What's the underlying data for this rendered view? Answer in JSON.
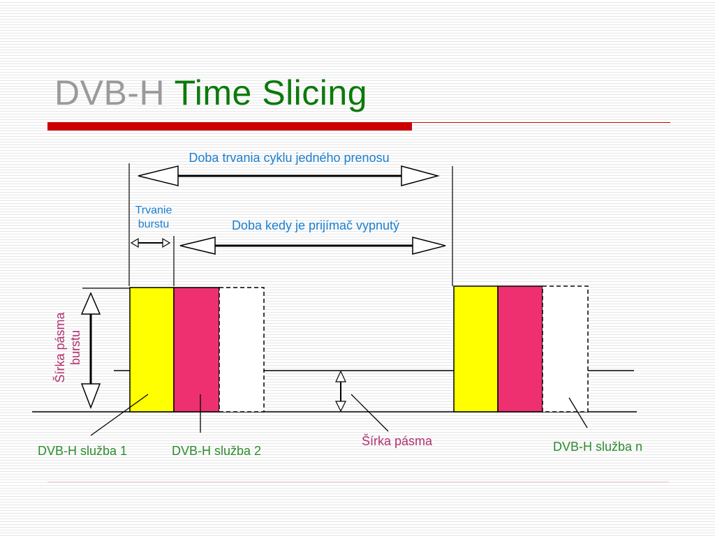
{
  "title": {
    "part1": "DVB-H",
    "part2": "Time Slicing"
  },
  "labels": {
    "cycle_duration": "Doba trvania cyklu jedného prenosu",
    "burst_duration_line1": "Trvanie",
    "burst_duration_line2": "burstu",
    "receiver_off": "Doba kedy je prijímač vypnutý",
    "burst_bandwidth_line1": "Šírka pásma",
    "burst_bandwidth_line2": "burstu",
    "bandwidth": "Šírka pásma",
    "service1": "DVB-H služba 1",
    "service2": "DVB-H služba 2",
    "servicen": "DVB-H služba n"
  },
  "colors": {
    "service1": "#ffff00",
    "service2": "#ee3070",
    "servicen": "#ffffff",
    "title_gray": "#9a9a9a",
    "title_green": "#0a7a0a",
    "accent_red": "#cc0000",
    "label_blue": "#1a7fd0",
    "label_green": "#2e8b2e",
    "label_pink": "#b0306e"
  }
}
